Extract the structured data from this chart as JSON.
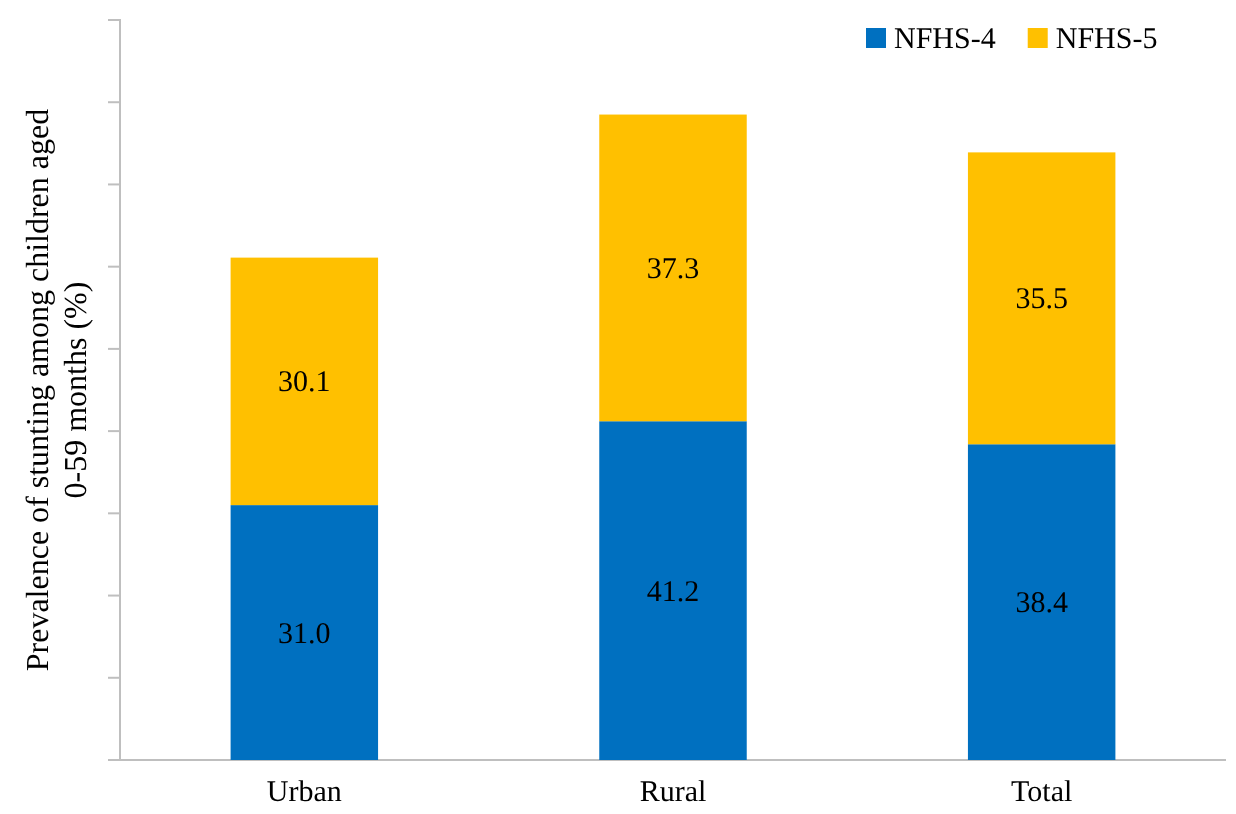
{
  "chart_data": {
    "type": "bar",
    "stacked": true,
    "ylabel": "Prevalence of stunting among children aged 0-59 months (%)",
    "categories": [
      "Urban",
      "Rural",
      "Total"
    ],
    "series": [
      {
        "name": "NFHS-4",
        "color": "#0070c0",
        "values": [
          31.0,
          41.2,
          38.4
        ],
        "value_labels": [
          "31.0",
          "41.2",
          "38.4"
        ]
      },
      {
        "name": "NFHS-5",
        "color": "#ffc000",
        "values": [
          30.1,
          37.3,
          35.5
        ],
        "value_labels": [
          "30.1",
          "37.3",
          "35.5"
        ]
      }
    ],
    "ylim": [
      0,
      90
    ],
    "yticks": [
      {
        "value": 0,
        "label": null
      },
      {
        "value": 10,
        "label": null
      },
      {
        "value": 20,
        "label": null
      },
      {
        "value": 30,
        "label": null
      },
      {
        "value": 40,
        "label": null
      },
      {
        "value": 50,
        "label": null
      },
      {
        "value": 60,
        "label": null
      },
      {
        "value": 70,
        "label": null
      },
      {
        "value": 80,
        "label": null
      },
      {
        "value": 90,
        "label": null
      }
    ],
    "tick_labels": "x",
    "legend": "top right",
    "grid": false
  }
}
